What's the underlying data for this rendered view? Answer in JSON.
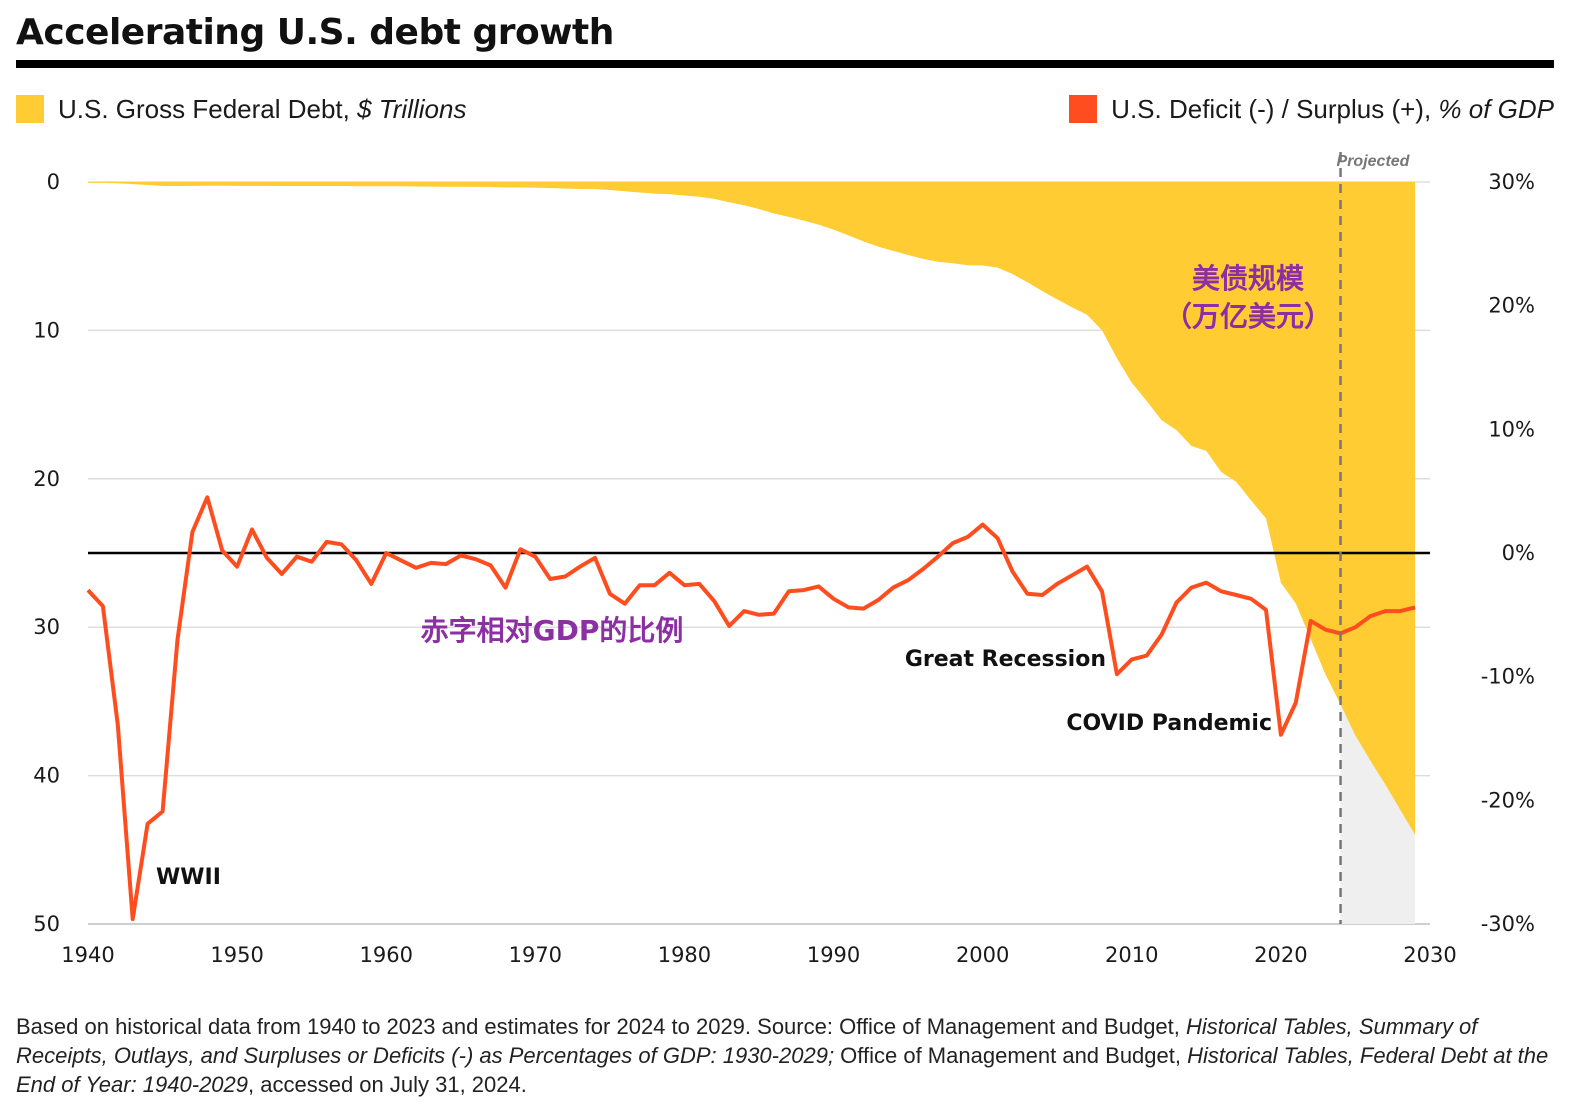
{
  "title": "Accelerating U.S. debt growth",
  "legend": {
    "debt_label": "U.S. Gross Federal Debt,",
    "debt_unit": "$ Trillions",
    "deficit_label": "U.S. Deficit (-) / Surplus (+),",
    "deficit_unit": "% of GDP",
    "debt_color": "#ffcc33",
    "deficit_color": "#ff4d1f"
  },
  "footnote": {
    "part1": "Based on historical data from 1940 to 2023 and estimates for 2024 to 2029. Source: Office of Management and Budget, ",
    "part2": "Historical Tables, Summary of Receipts, Outlays, and Surpluses or Deficits (-) as Percentages of GDP: 1930-2029;",
    "part3": " Office of Management and Budget, ",
    "part4": "Historical Tables, Federal Debt at the End of Year: 1940-2029",
    "part5": ", accessed on July 31, 2024."
  },
  "chart_data": {
    "type": "area",
    "title": "Accelerating U.S. debt growth",
    "x_ticks": [
      "1940",
      "1950",
      "1960",
      "1970",
      "1980",
      "1990",
      "2000",
      "2010",
      "2020",
      "2030"
    ],
    "left_ticks": [
      "0",
      "10",
      "20",
      "30",
      "40",
      "50"
    ],
    "right_ticks": [
      "30%",
      "20%",
      "10%",
      "0%",
      "-10%",
      "-20%",
      "-30%"
    ],
    "xlim": [
      1940,
      2030
    ],
    "left_ylim": [
      0,
      50
    ],
    "right_ylim": [
      -30,
      30
    ],
    "projection_start": 2024,
    "projected_label": "Projected",
    "series": [
      {
        "name": "U.S. Gross Federal Debt, $ Trillions",
        "kind": "area",
        "axis": "left",
        "color": "#ffcc33",
        "x": [
          1940,
          1941,
          1942,
          1943,
          1944,
          1945,
          1946,
          1947,
          1948,
          1949,
          1950,
          1951,
          1952,
          1953,
          1954,
          1955,
          1956,
          1957,
          1958,
          1959,
          1960,
          1961,
          1962,
          1963,
          1964,
          1965,
          1966,
          1967,
          1968,
          1969,
          1970,
          1971,
          1972,
          1973,
          1974,
          1975,
          1976,
          1977,
          1978,
          1979,
          1980,
          1981,
          1982,
          1983,
          1984,
          1985,
          1986,
          1987,
          1988,
          1989,
          1990,
          1991,
          1992,
          1993,
          1994,
          1995,
          1996,
          1997,
          1998,
          1999,
          2000,
          2001,
          2002,
          2003,
          2004,
          2005,
          2006,
          2007,
          2008,
          2009,
          2010,
          2011,
          2012,
          2013,
          2014,
          2015,
          2016,
          2017,
          2018,
          2019,
          2020,
          2021,
          2022,
          2023,
          2024,
          2025,
          2026,
          2027,
          2028,
          2029
        ],
        "values": [
          0.05,
          0.06,
          0.08,
          0.14,
          0.2,
          0.26,
          0.27,
          0.26,
          0.25,
          0.25,
          0.26,
          0.26,
          0.26,
          0.27,
          0.27,
          0.27,
          0.27,
          0.27,
          0.28,
          0.29,
          0.29,
          0.29,
          0.3,
          0.31,
          0.32,
          0.32,
          0.33,
          0.34,
          0.37,
          0.37,
          0.38,
          0.41,
          0.44,
          0.47,
          0.48,
          0.54,
          0.63,
          0.71,
          0.78,
          0.83,
          0.91,
          1.0,
          1.14,
          1.37,
          1.56,
          1.82,
          2.12,
          2.35,
          2.6,
          2.87,
          3.21,
          3.6,
          4.0,
          4.35,
          4.64,
          4.92,
          5.18,
          5.37,
          5.48,
          5.61,
          5.63,
          5.77,
          6.2,
          6.76,
          7.35,
          7.91,
          8.45,
          8.95,
          9.99,
          11.88,
          13.53,
          14.76,
          16.05,
          16.72,
          17.79,
          18.12,
          19.54,
          20.21,
          21.46,
          22.67,
          27.0,
          28.4,
          30.8,
          33.2,
          35.2,
          37.3,
          39.0,
          40.6,
          42.3,
          44.0
        ]
      },
      {
        "name": "U.S. Deficit (-) / Surplus (+), % of GDP",
        "kind": "line",
        "axis": "right",
        "color": "#ff4d1f",
        "x": [
          1940,
          1941,
          1942,
          1943,
          1944,
          1945,
          1946,
          1947,
          1948,
          1949,
          1950,
          1951,
          1952,
          1953,
          1954,
          1955,
          1956,
          1957,
          1958,
          1959,
          1960,
          1961,
          1962,
          1963,
          1964,
          1965,
          1966,
          1967,
          1968,
          1969,
          1970,
          1971,
          1972,
          1973,
          1974,
          1975,
          1976,
          1977,
          1978,
          1979,
          1980,
          1981,
          1982,
          1983,
          1984,
          1985,
          1986,
          1987,
          1988,
          1989,
          1990,
          1991,
          1992,
          1993,
          1994,
          1995,
          1996,
          1997,
          1998,
          1999,
          2000,
          2001,
          2002,
          2003,
          2004,
          2005,
          2006,
          2007,
          2008,
          2009,
          2010,
          2011,
          2012,
          2013,
          2014,
          2015,
          2016,
          2017,
          2018,
          2019,
          2020,
          2021,
          2022,
          2023,
          2024,
          2025,
          2026,
          2027,
          2028,
          2029
        ],
        "values": [
          -3.0,
          -4.3,
          -13.9,
          -29.6,
          -21.9,
          -20.9,
          -7.0,
          1.7,
          4.5,
          0.2,
          -1.1,
          1.9,
          -0.4,
          -1.7,
          -0.3,
          -0.7,
          0.9,
          0.7,
          -0.6,
          -2.5,
          0.0,
          -0.6,
          -1.2,
          -0.8,
          -0.9,
          -0.2,
          -0.5,
          -1.0,
          -2.8,
          0.3,
          -0.3,
          -2.1,
          -1.9,
          -1.1,
          -0.4,
          -3.3,
          -4.1,
          -2.6,
          -2.6,
          -1.6,
          -2.6,
          -2.5,
          -3.9,
          -5.9,
          -4.7,
          -5.0,
          -4.9,
          -3.1,
          -3.0,
          -2.7,
          -3.7,
          -4.4,
          -4.5,
          -3.8,
          -2.8,
          -2.2,
          -1.3,
          -0.3,
          0.8,
          1.3,
          2.3,
          1.2,
          -1.5,
          -3.3,
          -3.4,
          -2.5,
          -1.8,
          -1.1,
          -3.1,
          -9.8,
          -8.6,
          -8.3,
          -6.6,
          -4.0,
          -2.8,
          -2.4,
          -3.1,
          -3.4,
          -3.7,
          -4.6,
          -14.7,
          -12.1,
          -5.5,
          -6.2,
          -6.5,
          -6.0,
          -5.1,
          -4.7,
          -4.7,
          -4.4
        ]
      }
    ],
    "annotations": {
      "wwii": "WWII",
      "great_recession": "Great Recession",
      "covid": "COVID Pandemic",
      "debt_cn": "美债规模",
      "debt_cn_unit": "（万亿美元）",
      "deficit_cn": "赤字相对GDP的比例"
    }
  }
}
